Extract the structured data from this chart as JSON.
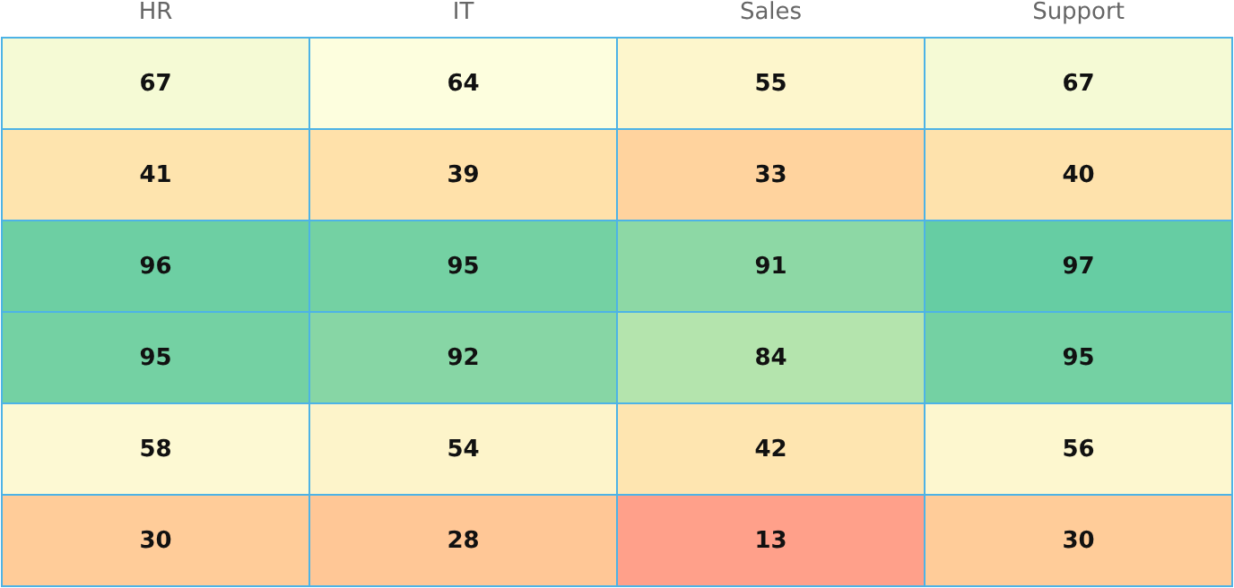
{
  "chart_data": {
    "type": "heatmap",
    "categories": [
      "HR",
      "IT",
      "Sales",
      "Support"
    ],
    "y_categories": [
      null,
      null,
      null,
      null,
      null,
      null
    ],
    "cells": [
      [
        67,
        64,
        55,
        67
      ],
      [
        41,
        39,
        33,
        40
      ],
      [
        96,
        95,
        91,
        97
      ],
      [
        95,
        92,
        84,
        95
      ],
      [
        58,
        54,
        42,
        56
      ],
      [
        30,
        28,
        13,
        30
      ]
    ],
    "data_labels": true
  }
}
